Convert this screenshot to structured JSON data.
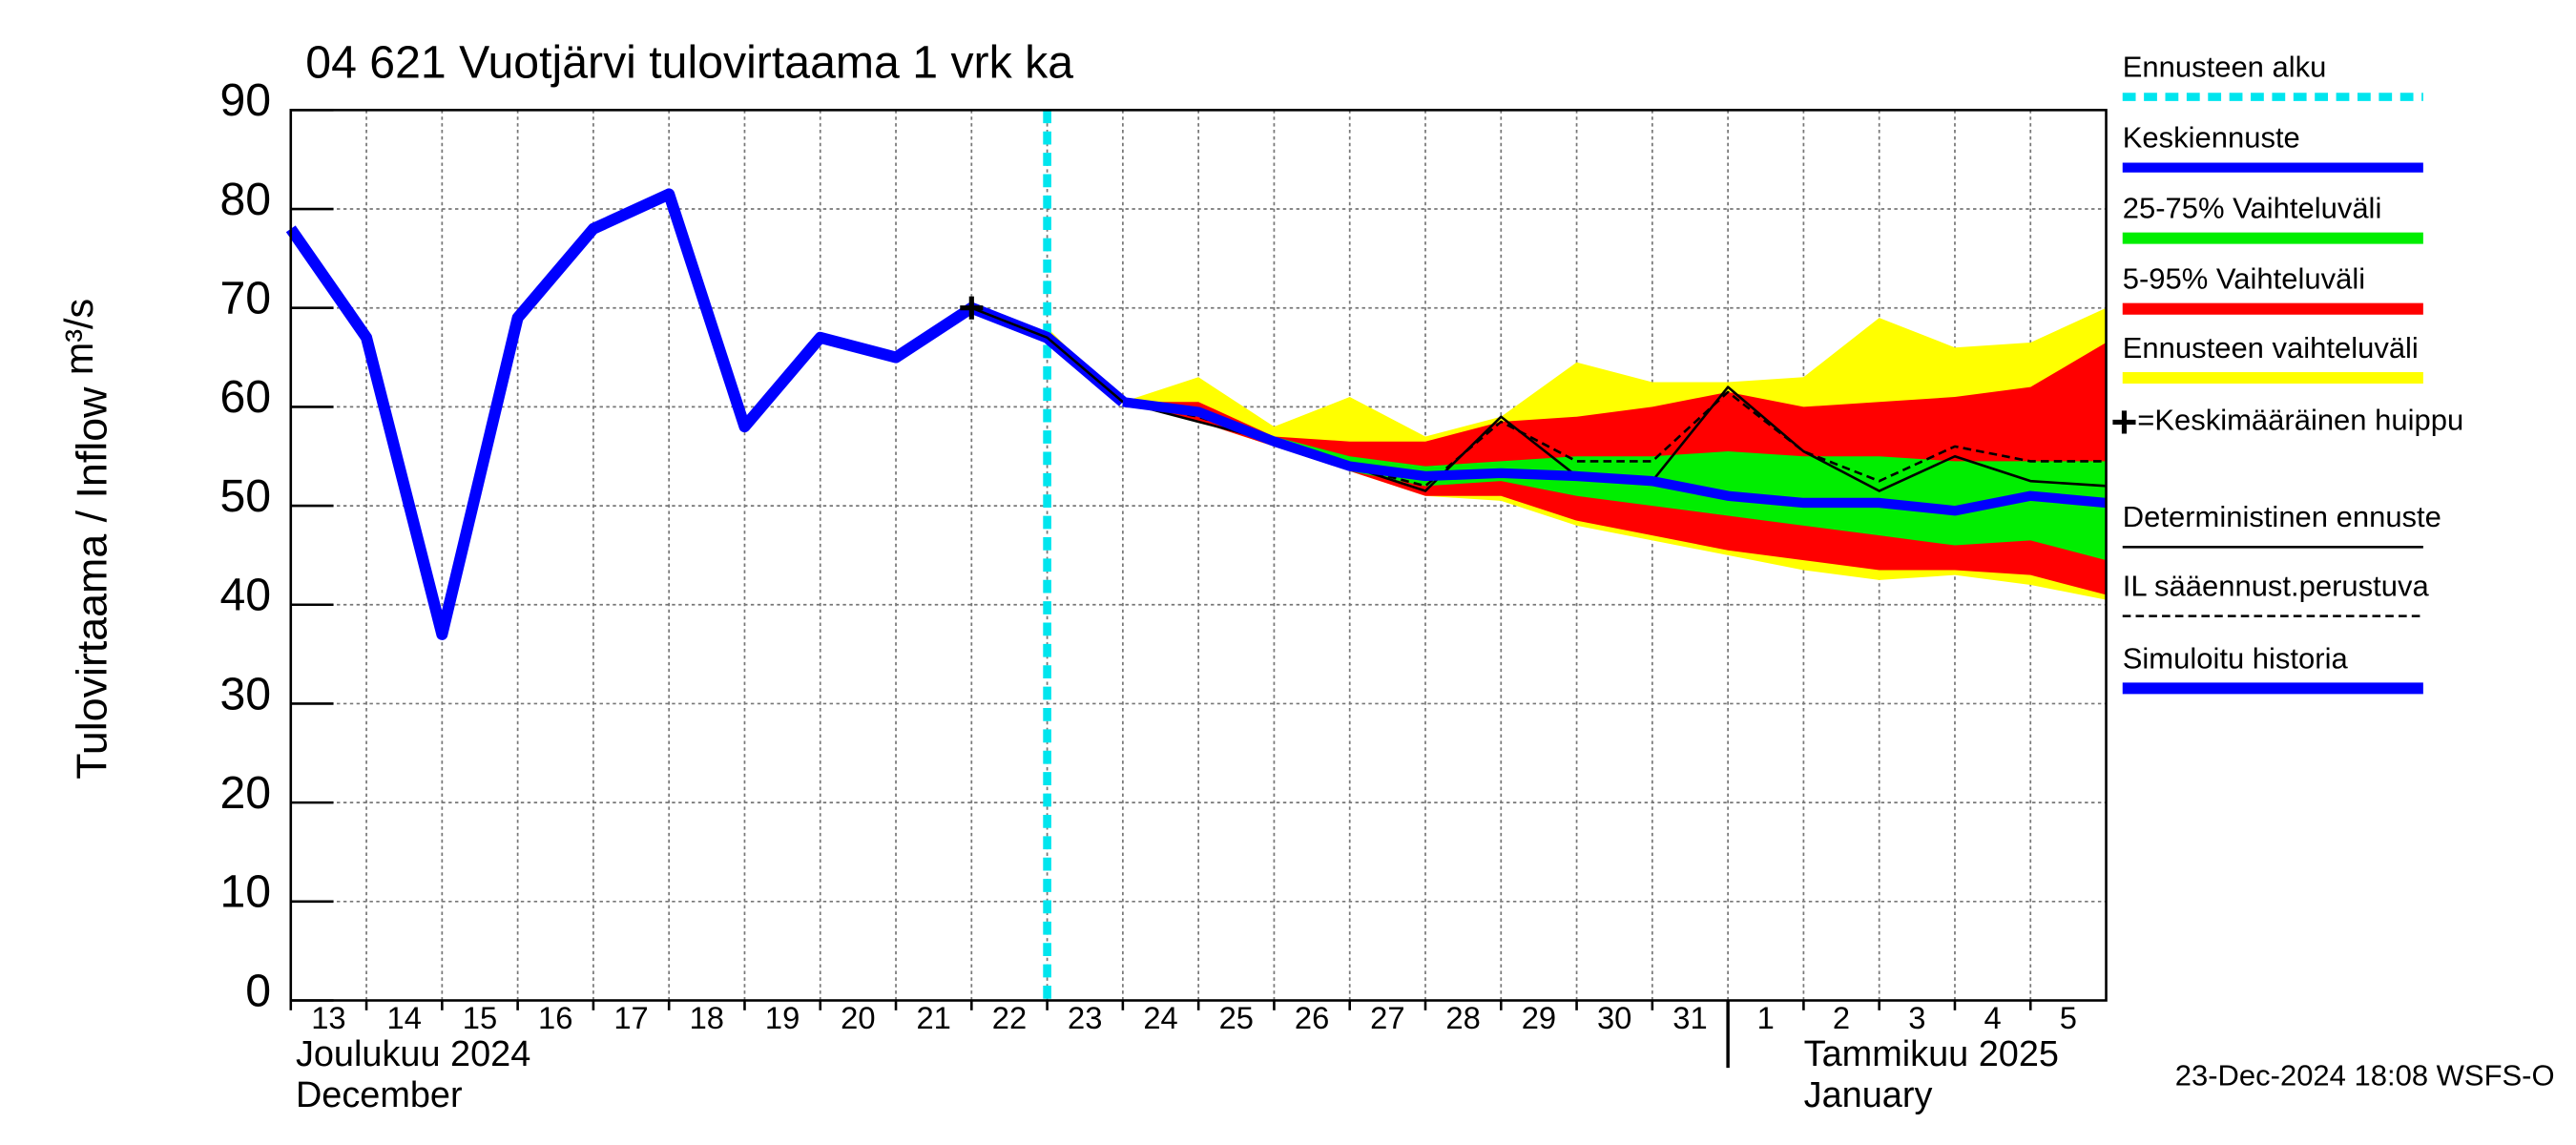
{
  "chart_data": {
    "type": "line",
    "title": "04 621 Vuotjärvi tulovirtaama 1 vrk ka",
    "ylabel": "Tulovirtaama / Inflow",
    "yunit": "m³/s",
    "footer": "23-Dec-2024 18:08 WSFS-O",
    "month_labels": [
      [
        "Joulukuu  2024",
        "December"
      ],
      [
        "Tammikuu  2025",
        "January"
      ]
    ],
    "month_start": "2025-01-01",
    "x": [
      "2024-12-13",
      "2024-12-14",
      "2024-12-15",
      "2024-12-16",
      "2024-12-17",
      "2024-12-18",
      "2024-12-19",
      "2024-12-20",
      "2024-12-21",
      "2024-12-22",
      "2024-12-23",
      "2024-12-24",
      "2024-12-25",
      "2024-12-26",
      "2024-12-27",
      "2024-12-28",
      "2024-12-29",
      "2024-12-30",
      "2024-12-31",
      "2025-01-01",
      "2025-01-02",
      "2025-01-03",
      "2025-01-04",
      "2025-01-05",
      "2025-01-06"
    ],
    "xlim": [
      "2024-12-13",
      "2025-01-06"
    ],
    "xticks": [
      {
        "value": "2024-12-13",
        "label": "13"
      },
      {
        "value": "2024-12-14",
        "label": "14"
      },
      {
        "value": "2024-12-15",
        "label": "15"
      },
      {
        "value": "2024-12-16",
        "label": "16"
      },
      {
        "value": "2024-12-17",
        "label": "17"
      },
      {
        "value": "2024-12-18",
        "label": "18"
      },
      {
        "value": "2024-12-19",
        "label": "19"
      },
      {
        "value": "2024-12-20",
        "label": "20"
      },
      {
        "value": "2024-12-21",
        "label": "21"
      },
      {
        "value": "2024-12-22",
        "label": "22"
      },
      {
        "value": "2024-12-23",
        "label": "23"
      },
      {
        "value": "2024-12-24",
        "label": "24"
      },
      {
        "value": "2024-12-25",
        "label": "25"
      },
      {
        "value": "2024-12-26",
        "label": "26"
      },
      {
        "value": "2024-12-27",
        "label": "27"
      },
      {
        "value": "2024-12-28",
        "label": "28"
      },
      {
        "value": "2024-12-29",
        "label": "29"
      },
      {
        "value": "2024-12-30",
        "label": "30"
      },
      {
        "value": "2024-12-31",
        "label": "31"
      },
      {
        "value": "2025-01-01",
        "label": "1"
      },
      {
        "value": "2025-01-02",
        "label": "2"
      },
      {
        "value": "2025-01-03",
        "label": "3"
      },
      {
        "value": "2025-01-04",
        "label": "4"
      },
      {
        "value": "2025-01-05",
        "label": "5"
      }
    ],
    "ylim": [
      0,
      90
    ],
    "yticks": [
      0,
      10,
      20,
      30,
      40,
      50,
      60,
      70,
      80,
      90
    ],
    "grid": true,
    "forecast_start": {
      "name": "Ennusteen alku",
      "x": "2024-12-23",
      "color": "#00e5ee"
    },
    "series": [
      {
        "name": "Keskiennuste",
        "color": "#0000ff",
        "style": "line",
        "width": 6,
        "values": [
          null,
          null,
          null,
          null,
          null,
          null,
          null,
          null,
          null,
          null,
          null,
          60.5,
          59.5,
          56.5,
          54,
          53,
          53.3,
          53,
          52.5,
          51,
          50.3,
          50.3,
          49.5,
          51,
          50.3
        ]
      },
      {
        "name": "25-75% Vaihteluväli",
        "color": "#00ee00",
        "style": "band",
        "values": [
          null,
          null,
          null,
          null,
          null,
          null,
          null,
          null,
          null,
          null,
          null,
          60.5,
          59.5,
          57,
          55,
          54,
          54.5,
          55,
          55,
          55.5,
          55,
          55,
          54.5,
          54.5,
          54.5
        ],
        "lower": [
          null,
          null,
          null,
          null,
          null,
          null,
          null,
          null,
          null,
          null,
          null,
          60.5,
          59,
          56.5,
          53.5,
          52,
          52.5,
          51,
          50,
          49,
          48,
          47,
          46,
          46.5,
          44.5
        ]
      },
      {
        "name": "5-95% Vaihteluväli",
        "color": "#ff0000",
        "style": "band",
        "values": [
          null,
          null,
          null,
          null,
          null,
          null,
          null,
          null,
          null,
          null,
          null,
          60.5,
          60.5,
          57,
          56.5,
          56.5,
          58.5,
          59,
          60,
          61.5,
          60,
          60.5,
          61,
          62,
          66.5
        ],
        "lower": [
          null,
          null,
          null,
          null,
          null,
          null,
          null,
          null,
          null,
          null,
          null,
          60.5,
          58.5,
          56,
          53.5,
          51,
          51,
          48.5,
          47,
          45.5,
          44.5,
          43.5,
          43.5,
          43,
          41
        ]
      },
      {
        "name": "Ennusteen vaihteluväli",
        "color": "#ffff00",
        "style": "band",
        "values": [
          null,
          null,
          null,
          null,
          null,
          null,
          null,
          null,
          null,
          null,
          68,
          60.5,
          63,
          58,
          61,
          57,
          59,
          64.5,
          62.5,
          62.5,
          63,
          69,
          66,
          66.5,
          70
        ],
        "lower": [
          null,
          null,
          null,
          null,
          null,
          null,
          null,
          null,
          null,
          null,
          67,
          60.5,
          58.5,
          56,
          53.5,
          51,
          50.5,
          48,
          46.5,
          45,
          43.5,
          42.5,
          43,
          42,
          40.5
        ]
      },
      {
        "name": "=Keskimääräinen huippu",
        "color": "#000000",
        "style": "marker",
        "values": [
          null,
          null,
          null,
          null,
          null,
          null,
          null,
          null,
          null,
          70,
          null,
          null,
          null,
          null,
          null,
          null,
          null,
          null,
          null,
          null,
          null,
          null,
          null,
          null,
          null
        ]
      },
      {
        "name": "Deterministinen ennuste",
        "color": "#000000",
        "style": "line",
        "width": 1.5,
        "values": [
          null,
          null,
          null,
          null,
          null,
          null,
          null,
          null,
          null,
          70,
          67,
          60.5,
          58.5,
          56.5,
          54,
          51.5,
          59,
          53,
          52.5,
          62,
          55.5,
          51.5,
          55,
          52.5,
          52
        ]
      },
      {
        "name": "IL sääennust.perustuva",
        "color": "#000000",
        "style": "dashed",
        "width": 1.5,
        "values": [
          null,
          null,
          null,
          null,
          null,
          null,
          null,
          null,
          null,
          null,
          null,
          60.5,
          59,
          56.5,
          54,
          52,
          58.5,
          54.5,
          54.5,
          61.5,
          55.5,
          52.5,
          56,
          54.5,
          54.5
        ]
      },
      {
        "name": "Simuloitu historia",
        "color": "#0000ff",
        "style": "line",
        "width": 7,
        "values": [
          78,
          67,
          37,
          69,
          78,
          81.5,
          58,
          67,
          65,
          70,
          67,
          60.5,
          null,
          null,
          null,
          null,
          null,
          null,
          null,
          null,
          null,
          null,
          null,
          null,
          null
        ]
      }
    ]
  }
}
